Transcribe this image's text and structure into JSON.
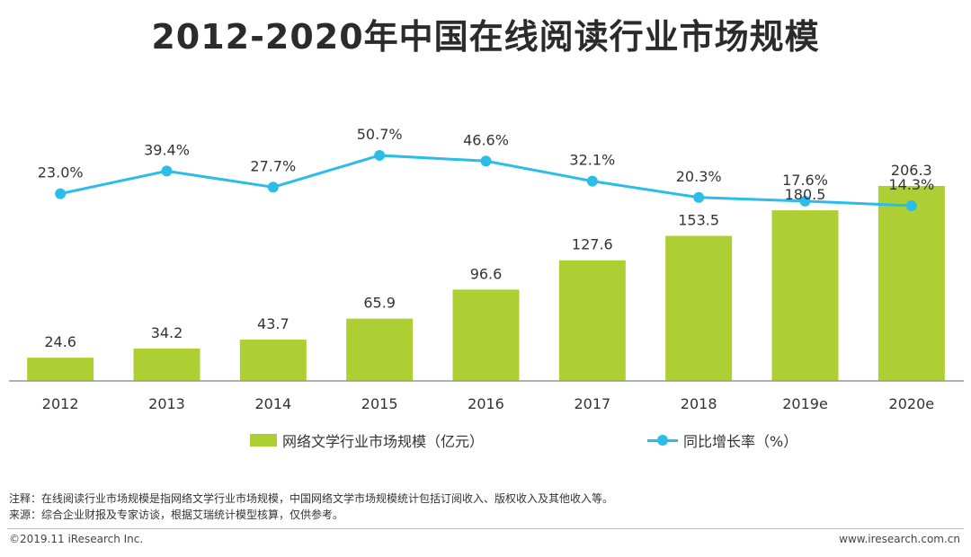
{
  "header": {
    "title": "2012-2020年中国在线阅读行业市场规模"
  },
  "chart_data": {
    "type": "bar",
    "title": "2012-2020年中国在线阅读行业市场规模",
    "categories": [
      "2012",
      "2013",
      "2014",
      "2015",
      "2016",
      "2017",
      "2018",
      "2019e",
      "2020e"
    ],
    "series": [
      {
        "name": "网络文学行业市场规模（亿元）",
        "type": "bar",
        "values": [
          24.6,
          34.2,
          43.7,
          65.9,
          96.6,
          127.6,
          153.5,
          180.5,
          206.3
        ],
        "labels": [
          "24.6",
          "34.2",
          "43.7",
          "65.9",
          "96.6",
          "127.6",
          "153.5",
          "180.5",
          "206.3"
        ],
        "color": "#aecf34"
      },
      {
        "name": "同比增长率（%）",
        "type": "line",
        "values": [
          23.0,
          39.4,
          27.7,
          50.7,
          46.6,
          32.1,
          20.3,
          17.6,
          14.3
        ],
        "labels": [
          "23.0%",
          "39.4%",
          "27.7%",
          "50.7%",
          "46.6%",
          "32.1%",
          "20.3%",
          "17.6%",
          "14.3%"
        ],
        "color": "#2bbde8"
      }
    ],
    "ylim_bar": [
      0,
      230
    ],
    "ylim_line": [
      0,
      120
    ],
    "grid": false,
    "legend_position": "bottom-center"
  },
  "notes": {
    "note": "注释：在线阅读行业市场规模是指网络文学行业市场规模，中国网络文学市场规模统计包括订阅收入、版权收入及其他收入等。",
    "source": "来源：综合企业财报及专家访谈，根据艾瑞统计模型核算，仅供参考。"
  },
  "footer": {
    "copyright": "©2019.11 iResearch Inc.",
    "website": "www.iresearch.com.cn"
  },
  "colors": {
    "bar": "#aecf34",
    "line": "#2bbde8",
    "axis": "#999999"
  }
}
